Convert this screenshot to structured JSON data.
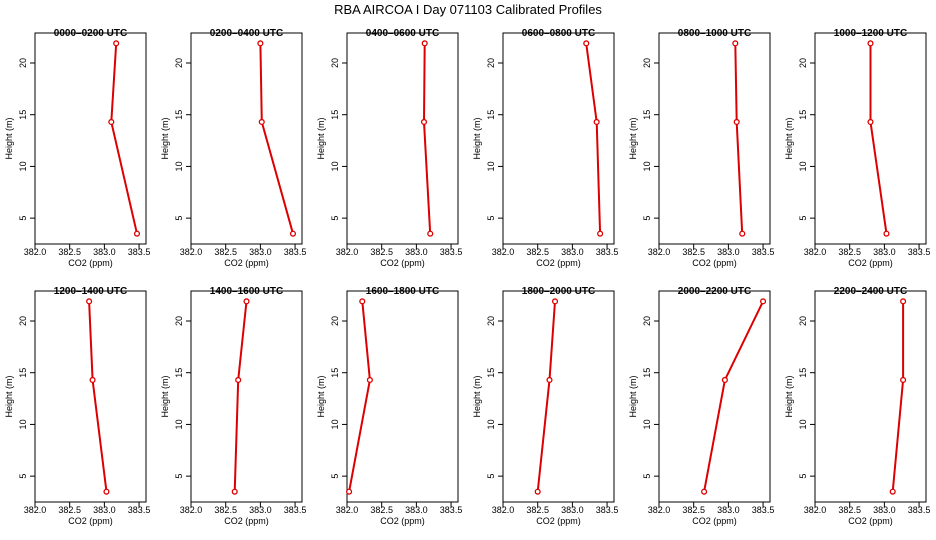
{
  "figure_title": "RBA AIRCOA I  Day 071103  Calibrated Profiles",
  "colors": {
    "series": "#dd0000",
    "axis": "#000000",
    "background": "#ffffff"
  },
  "chart_data": [
    {
      "type": "line",
      "title": "0000–0200 UTC",
      "xlabel": "CO2 (ppm)",
      "ylabel": "Height (m)",
      "xlim": [
        382.0,
        383.6
      ],
      "ylim": [
        2.5,
        22.9
      ],
      "xticks": [
        "382.0",
        "382.5",
        "383.0",
        "383.5"
      ],
      "yticks": [
        "5",
        "10",
        "15",
        "20"
      ],
      "x": [
        383.17,
        383.1,
        383.47
      ],
      "y": [
        21.9,
        14.3,
        3.5
      ]
    },
    {
      "type": "line",
      "title": "0200–0400 UTC",
      "xlabel": "CO2 (ppm)",
      "ylabel": "Height (m)",
      "xlim": [
        382.0,
        383.6
      ],
      "ylim": [
        2.5,
        22.9
      ],
      "xticks": [
        "382.0",
        "382.5",
        "383.0",
        "383.5"
      ],
      "yticks": [
        "5",
        "10",
        "15",
        "20"
      ],
      "x": [
        383.0,
        383.02,
        383.47
      ],
      "y": [
        21.9,
        14.3,
        3.5
      ]
    },
    {
      "type": "line",
      "title": "0400–0600 UTC",
      "xlabel": "CO2 (ppm)",
      "ylabel": "Height (m)",
      "xlim": [
        382.0,
        383.6
      ],
      "ylim": [
        2.5,
        22.9
      ],
      "xticks": [
        "382.0",
        "382.5",
        "383.0",
        "383.5"
      ],
      "yticks": [
        "5",
        "10",
        "15",
        "20"
      ],
      "x": [
        383.12,
        383.11,
        383.2
      ],
      "y": [
        21.9,
        14.3,
        3.5
      ]
    },
    {
      "type": "line",
      "title": "0600–0800 UTC",
      "xlabel": "CO2 (ppm)",
      "ylabel": "Height (m)",
      "xlim": [
        382.0,
        383.6
      ],
      "ylim": [
        2.5,
        22.9
      ],
      "xticks": [
        "382.0",
        "382.5",
        "383.0",
        "383.5"
      ],
      "yticks": [
        "5",
        "10",
        "15",
        "20"
      ],
      "x": [
        383.2,
        383.35,
        383.4
      ],
      "y": [
        21.9,
        14.3,
        3.5
      ]
    },
    {
      "type": "line",
      "title": "0800–1000 UTC",
      "xlabel": "CO2 (ppm)",
      "ylabel": "Height (m)",
      "xlim": [
        382.0,
        383.6
      ],
      "ylim": [
        2.5,
        22.9
      ],
      "xticks": [
        "382.0",
        "382.5",
        "383.0",
        "383.5"
      ],
      "yticks": [
        "5",
        "10",
        "15",
        "20"
      ],
      "x": [
        383.1,
        383.12,
        383.2
      ],
      "y": [
        21.9,
        14.3,
        3.5
      ]
    },
    {
      "type": "line",
      "title": "1000–1200 UTC",
      "xlabel": "CO2 (ppm)",
      "ylabel": "Height (m)",
      "xlim": [
        382.0,
        383.6
      ],
      "ylim": [
        2.5,
        22.9
      ],
      "xticks": [
        "382.0",
        "382.5",
        "383.0",
        "383.5"
      ],
      "yticks": [
        "5",
        "10",
        "15",
        "20"
      ],
      "x": [
        382.8,
        382.8,
        383.03
      ],
      "y": [
        21.9,
        14.3,
        3.5
      ]
    },
    {
      "type": "line",
      "title": "1200–1400 UTC",
      "xlabel": "CO2 (ppm)",
      "ylabel": "Height (m)",
      "xlim": [
        382.0,
        383.6
      ],
      "ylim": [
        2.5,
        22.9
      ],
      "xticks": [
        "382.0",
        "382.5",
        "383.0",
        "383.5"
      ],
      "yticks": [
        "5",
        "10",
        "15",
        "20"
      ],
      "x": [
        382.78,
        382.83,
        383.03
      ],
      "y": [
        21.9,
        14.3,
        3.5
      ]
    },
    {
      "type": "line",
      "title": "1400–1600 UTC",
      "xlabel": "CO2 (ppm)",
      "ylabel": "Height (m)",
      "xlim": [
        382.0,
        383.6
      ],
      "ylim": [
        2.5,
        22.9
      ],
      "xticks": [
        "382.0",
        "382.5",
        "383.0",
        "383.5"
      ],
      "yticks": [
        "5",
        "10",
        "15",
        "20"
      ],
      "x": [
        382.8,
        382.68,
        382.63
      ],
      "y": [
        21.9,
        14.3,
        3.5
      ]
    },
    {
      "type": "line",
      "title": "1600–1800 UTC",
      "xlabel": "CO2 (ppm)",
      "ylabel": "Height (m)",
      "xlim": [
        382.0,
        383.6
      ],
      "ylim": [
        2.5,
        22.9
      ],
      "xticks": [
        "382.0",
        "382.5",
        "383.0",
        "383.5"
      ],
      "yticks": [
        "5",
        "10",
        "15",
        "20"
      ],
      "x": [
        382.22,
        382.33,
        382.03
      ],
      "y": [
        21.9,
        14.3,
        3.5
      ]
    },
    {
      "type": "line",
      "title": "1800–2000 UTC",
      "xlabel": "CO2 (ppm)",
      "ylabel": "Height (m)",
      "xlim": [
        382.0,
        383.6
      ],
      "ylim": [
        2.5,
        22.9
      ],
      "xticks": [
        "382.0",
        "382.5",
        "383.0",
        "383.5"
      ],
      "yticks": [
        "5",
        "10",
        "15",
        "20"
      ],
      "x": [
        382.75,
        382.67,
        382.5
      ],
      "y": [
        21.9,
        14.3,
        3.5
      ]
    },
    {
      "type": "line",
      "title": "2000–2200 UTC",
      "xlabel": "CO2 (ppm)",
      "ylabel": "Height (m)",
      "xlim": [
        382.0,
        383.6
      ],
      "ylim": [
        2.5,
        22.9
      ],
      "xticks": [
        "382.0",
        "382.5",
        "383.0",
        "383.5"
      ],
      "yticks": [
        "5",
        "10",
        "15",
        "20"
      ],
      "x": [
        383.5,
        382.95,
        382.65
      ],
      "y": [
        21.9,
        14.3,
        3.5
      ]
    },
    {
      "type": "line",
      "title": "2200–2400 UTC",
      "xlabel": "CO2 (ppm)",
      "ylabel": "Height (m)",
      "xlim": [
        382.0,
        383.6
      ],
      "ylim": [
        2.5,
        22.9
      ],
      "xticks": [
        "382.0",
        "382.5",
        "383.0",
        "383.5"
      ],
      "yticks": [
        "5",
        "10",
        "15",
        "20"
      ],
      "x": [
        383.27,
        383.27,
        383.12
      ],
      "y": [
        21.9,
        14.3,
        3.5
      ]
    }
  ]
}
